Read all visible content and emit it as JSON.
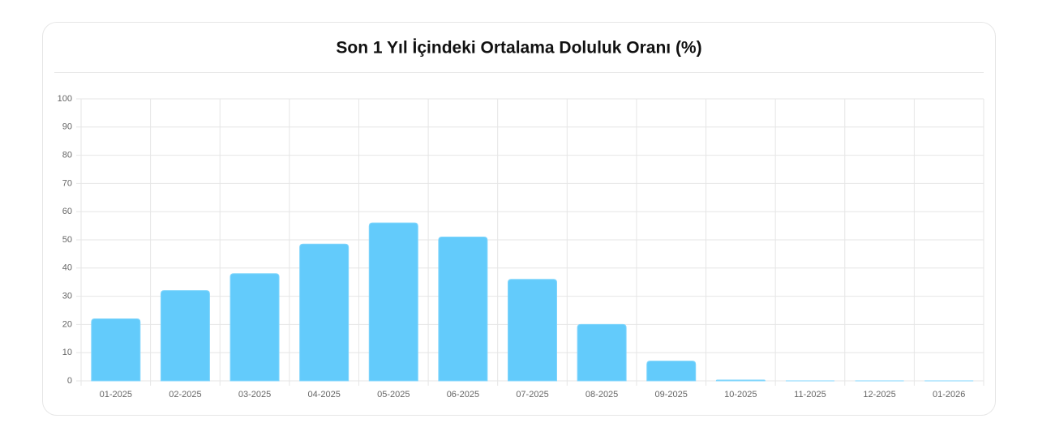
{
  "chart_data": {
    "type": "bar",
    "title": "Son 1 Yıl İçindeki Ortalama Doluluk Oranı (%)",
    "categories": [
      "01-2025",
      "02-2025",
      "03-2025",
      "04-2025",
      "05-2025",
      "06-2025",
      "07-2025",
      "08-2025",
      "09-2025",
      "10-2025",
      "11-2025",
      "12-2025",
      "01-2026"
    ],
    "values": [
      22,
      32,
      38,
      48.5,
      56,
      51,
      36,
      20,
      7,
      0.3,
      0,
      0,
      0
    ],
    "color": "#63cbfb",
    "ylim": [
      0,
      100
    ],
    "yticks": [
      0,
      10,
      20,
      30,
      40,
      50,
      60,
      70,
      80,
      90,
      100
    ],
    "grid": true
  }
}
